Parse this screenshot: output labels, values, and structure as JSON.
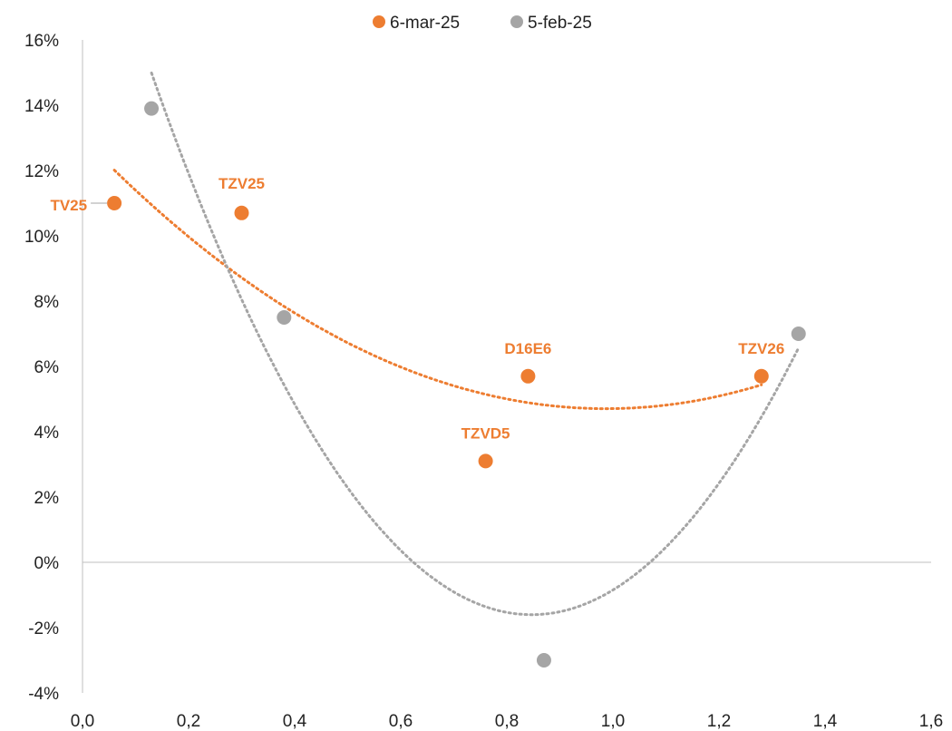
{
  "chart_data": {
    "type": "scatter",
    "title": "",
    "xlabel": "",
    "ylabel": "",
    "xlim": [
      0.0,
      1.6
    ],
    "ylim": [
      -4,
      16
    ],
    "x_ticks": [
      0.0,
      0.2,
      0.4,
      0.6,
      0.8,
      1.0,
      1.2,
      1.4,
      1.6
    ],
    "x_tick_labels": [
      "0,0",
      "0,2",
      "0,4",
      "0,6",
      "0,8",
      "1,0",
      "1,2",
      "1,4",
      "1,6"
    ],
    "y_ticks": [
      -4,
      -2,
      0,
      2,
      4,
      6,
      8,
      10,
      12,
      14,
      16
    ],
    "y_tick_labels": [
      "-4%",
      "-2%",
      "0%",
      "2%",
      "4%",
      "6%",
      "8%",
      "10%",
      "12%",
      "14%",
      "16%"
    ],
    "legend_position": "top-center",
    "grid": false,
    "series": [
      {
        "name": "6-mar-25",
        "color": "#ED7D31",
        "trendline": "polynomial-2",
        "points": [
          {
            "x": 0.06,
            "y": 11.0,
            "label": "TV25"
          },
          {
            "x": 0.3,
            "y": 10.7,
            "label": "TZV25"
          },
          {
            "x": 0.76,
            "y": 3.1,
            "label": "TZVD5"
          },
          {
            "x": 0.84,
            "y": 5.7,
            "label": "D16E6"
          },
          {
            "x": 1.28,
            "y": 5.7,
            "label": "TZV26"
          }
        ]
      },
      {
        "name": "5-feb-25",
        "color": "#A5A5A5",
        "trendline": "polynomial-2",
        "points": [
          {
            "x": 0.13,
            "y": 13.9
          },
          {
            "x": 0.38,
            "y": 7.5
          },
          {
            "x": 0.87,
            "y": -3.0
          },
          {
            "x": 1.35,
            "y": 7.0
          }
        ]
      }
    ]
  }
}
